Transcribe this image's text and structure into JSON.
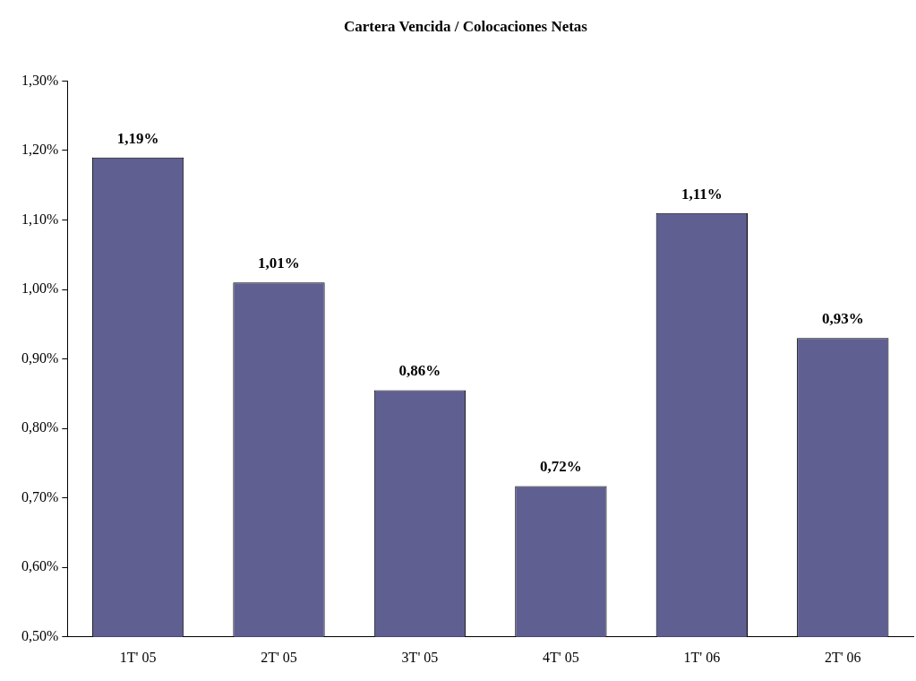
{
  "chart_data": {
    "type": "bar",
    "title": "Cartera Vencida / Colocaciones Netas",
    "categories": [
      "1T' 05",
      "2T' 05",
      "3T' 05",
      "4T' 05",
      "1T' 06",
      "2T' 06"
    ],
    "values": [
      1.19,
      1.01,
      0.855,
      0.717,
      1.11,
      0.93
    ],
    "value_labels": [
      "1,19%",
      "1,01%",
      "0,86%",
      "0,72%",
      "1,11%",
      "0,93%"
    ],
    "color": "#5f5f92",
    "ylim": [
      0.5,
      1.3
    ],
    "yticks": [
      {
        "value": 0.5,
        "label": "0,50%"
      },
      {
        "value": 0.6,
        "label": "0,60%"
      },
      {
        "value": 0.7,
        "label": "0,70%"
      },
      {
        "value": 0.8,
        "label": "0,80%"
      },
      {
        "value": 0.9,
        "label": "0,90%"
      },
      {
        "value": 1.0,
        "label": "1,00%"
      },
      {
        "value": 1.1,
        "label": "1,10%"
      },
      {
        "value": 1.2,
        "label": "1,20%"
      },
      {
        "value": 1.3,
        "label": "1,30%"
      }
    ],
    "grid": false,
    "legend": false
  }
}
